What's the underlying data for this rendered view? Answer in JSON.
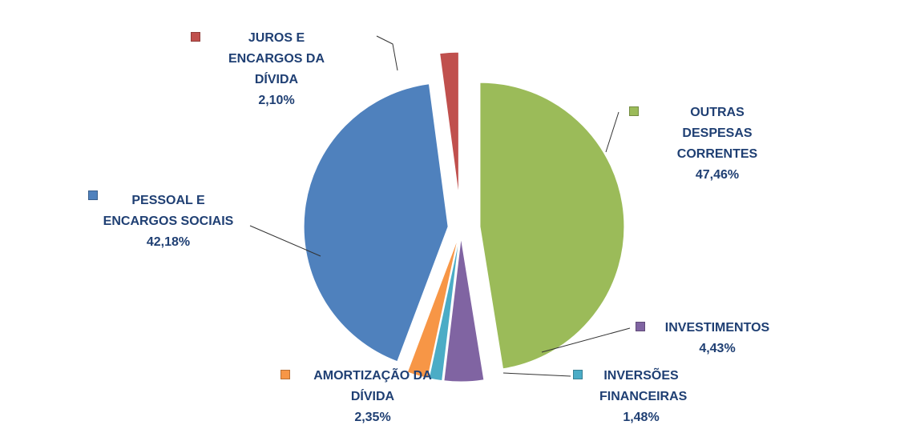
{
  "chart_data": {
    "type": "pie",
    "categories": [
      "OUTRAS DESPESAS CORRENTES",
      "INVESTIMENTOS",
      "INVERSÕES FINANCEIRAS",
      "AMORTIZAÇÃO DA DÍVIDA",
      "PESSOAL E ENCARGOS SOCIAIS",
      "JUROS E ENCARGOS DA DÍVIDA"
    ],
    "values": [
      47.46,
      4.43,
      1.48,
      2.35,
      42.18,
      2.1
    ],
    "value_labels": [
      "47,46%",
      "4,43%",
      "1,48%",
      "2,35%",
      "42,18%",
      "2,10%"
    ],
    "colors": [
      "#9bbb59",
      "#8064a2",
      "#4bacc6",
      "#f79646",
      "#4f81bd",
      "#c0504d"
    ]
  }
}
